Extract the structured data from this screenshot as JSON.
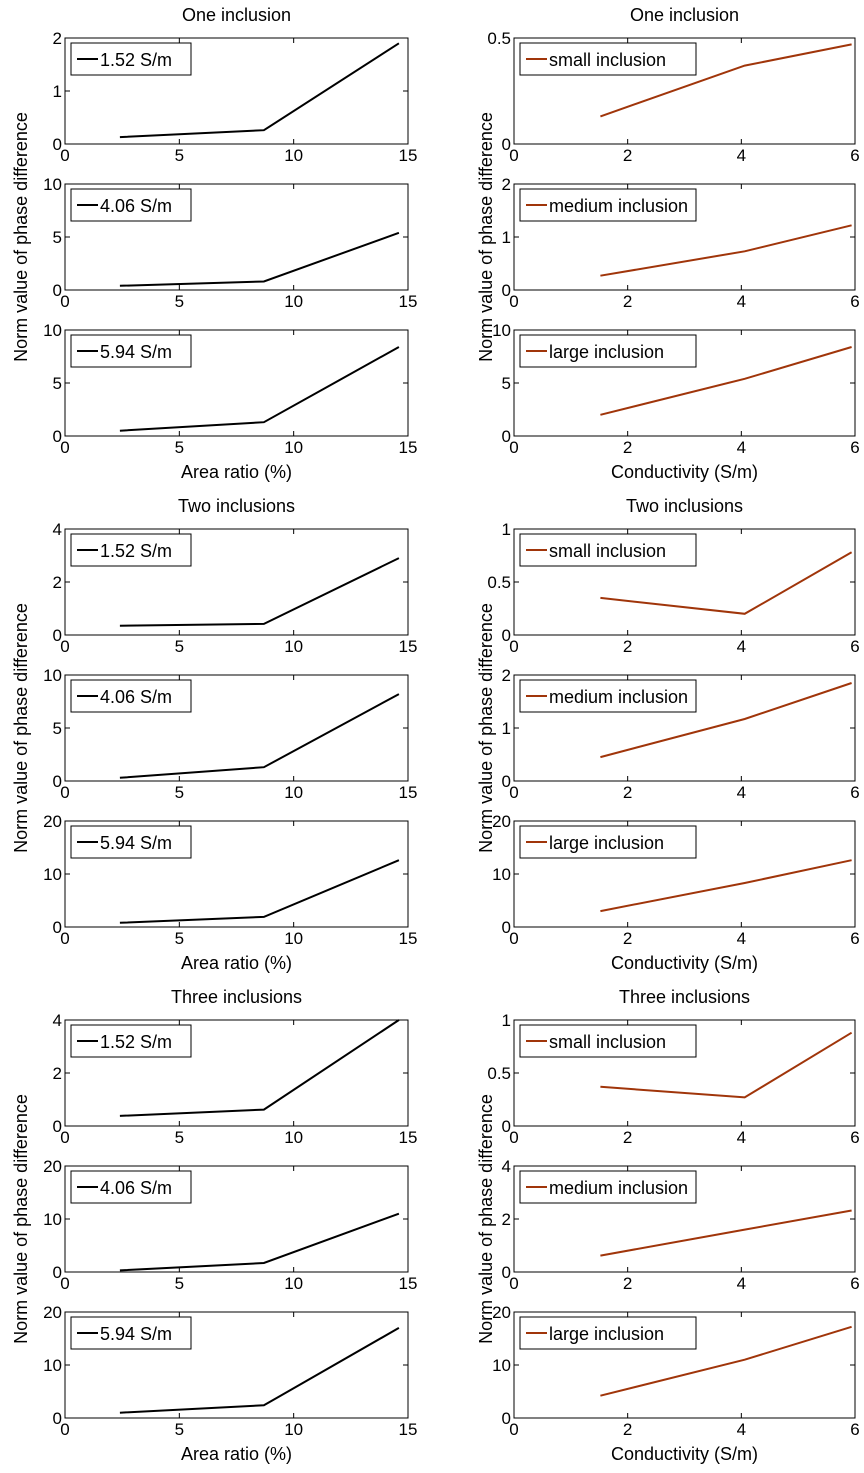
{
  "colors": {
    "left_series": "#000000",
    "right_series": "#a0350a"
  },
  "chart_data": [
    {
      "type": "line",
      "group": 0,
      "column": "left",
      "row": 0,
      "show_xlabel": false,
      "title": "One inclusion",
      "xlabel": "",
      "ylabel": "",
      "xlim": [
        0,
        15
      ],
      "ylim": [
        0,
        2
      ],
      "xticks": [
        0,
        5,
        10,
        15
      ],
      "yticks": [
        0,
        1,
        2
      ],
      "series": [
        {
          "name": "1.52 S/m",
          "x": [
            2.4,
            8.7,
            14.6
          ],
          "y": [
            0.13,
            0.26,
            1.9
          ]
        }
      ]
    },
    {
      "type": "line",
      "group": 0,
      "column": "left",
      "row": 1,
      "show_xlabel": false,
      "title": "",
      "xlabel": "",
      "ylabel": "",
      "xlim": [
        0,
        15
      ],
      "ylim": [
        0,
        10
      ],
      "xticks": [
        0,
        5,
        10,
        15
      ],
      "yticks": [
        0,
        5,
        10
      ],
      "series": [
        {
          "name": "4.06 S/m",
          "x": [
            2.4,
            8.7,
            14.6
          ],
          "y": [
            0.4,
            0.8,
            5.4
          ]
        }
      ]
    },
    {
      "type": "line",
      "group": 0,
      "column": "left",
      "row": 2,
      "show_xlabel": true,
      "title": "",
      "xlabel": "Area ratio (%)",
      "ylabel": "",
      "xlim": [
        0,
        15
      ],
      "ylim": [
        0,
        10
      ],
      "xticks": [
        0,
        5,
        10,
        15
      ],
      "yticks": [
        0,
        5,
        10
      ],
      "series": [
        {
          "name": "5.94 S/m",
          "x": [
            2.4,
            8.7,
            14.6
          ],
          "y": [
            0.5,
            1.3,
            8.4
          ]
        }
      ]
    },
    {
      "type": "line",
      "group": 0,
      "column": "right",
      "row": 0,
      "show_xlabel": false,
      "title": "One inclusion",
      "xlabel": "",
      "ylabel": "",
      "xlim": [
        0,
        6
      ],
      "ylim": [
        0,
        0.5
      ],
      "xticks": [
        0,
        2,
        4,
        6
      ],
      "yticks": [
        0,
        0.5
      ],
      "series": [
        {
          "name": "small inclusion",
          "x": [
            1.52,
            4.06,
            5.94
          ],
          "y": [
            0.13,
            0.37,
            0.47
          ]
        }
      ]
    },
    {
      "type": "line",
      "group": 0,
      "column": "right",
      "row": 1,
      "show_xlabel": false,
      "title": "",
      "xlabel": "",
      "ylabel": "",
      "xlim": [
        0,
        6
      ],
      "ylim": [
        0,
        2
      ],
      "xticks": [
        0,
        2,
        4,
        6
      ],
      "yticks": [
        0,
        1,
        2
      ],
      "series": [
        {
          "name": "medium inclusion",
          "x": [
            1.52,
            4.06,
            5.94
          ],
          "y": [
            0.27,
            0.73,
            1.22
          ]
        }
      ]
    },
    {
      "type": "line",
      "group": 0,
      "column": "right",
      "row": 2,
      "show_xlabel": true,
      "title": "",
      "xlabel": "Conductivity (S/m)",
      "ylabel": "",
      "xlim": [
        0,
        6
      ],
      "ylim": [
        0,
        10
      ],
      "xticks": [
        0,
        2,
        4,
        6
      ],
      "yticks": [
        0,
        5,
        10
      ],
      "series": [
        {
          "name": "large inclusion",
          "x": [
            1.52,
            4.06,
            5.94
          ],
          "y": [
            2.0,
            5.4,
            8.4
          ]
        }
      ]
    },
    {
      "type": "line",
      "group": 1,
      "column": "left",
      "row": 0,
      "show_xlabel": false,
      "title": "Two inclusions",
      "xlabel": "",
      "ylabel": "",
      "xlim": [
        0,
        15
      ],
      "ylim": [
        0,
        4
      ],
      "xticks": [
        0,
        5,
        10,
        15
      ],
      "yticks": [
        0,
        2,
        4
      ],
      "series": [
        {
          "name": "1.52 S/m",
          "x": [
            2.4,
            8.7,
            14.6
          ],
          "y": [
            0.35,
            0.42,
            2.9
          ]
        }
      ]
    },
    {
      "type": "line",
      "group": 1,
      "column": "left",
      "row": 1,
      "show_xlabel": false,
      "title": "",
      "xlabel": "",
      "ylabel": "",
      "xlim": [
        0,
        15
      ],
      "ylim": [
        0,
        10
      ],
      "xticks": [
        0,
        5,
        10,
        15
      ],
      "yticks": [
        0,
        5,
        10
      ],
      "series": [
        {
          "name": "4.06 S/m",
          "x": [
            2.4,
            8.7,
            14.6
          ],
          "y": [
            0.3,
            1.3,
            8.2
          ]
        }
      ]
    },
    {
      "type": "line",
      "group": 1,
      "column": "left",
      "row": 2,
      "show_xlabel": true,
      "title": "",
      "xlabel": "Area ratio (%)",
      "ylabel": "",
      "xlim": [
        0,
        15
      ],
      "ylim": [
        0,
        20
      ],
      "xticks": [
        0,
        5,
        10,
        15
      ],
      "yticks": [
        0,
        10,
        20
      ],
      "series": [
        {
          "name": "5.94 S/m",
          "x": [
            2.4,
            8.7,
            14.6
          ],
          "y": [
            0.8,
            1.9,
            12.6
          ]
        }
      ]
    },
    {
      "type": "line",
      "group": 1,
      "column": "right",
      "row": 0,
      "show_xlabel": false,
      "title": "Two inclusions",
      "xlabel": "",
      "ylabel": "",
      "xlim": [
        0,
        6
      ],
      "ylim": [
        0,
        1
      ],
      "xticks": [
        0,
        2,
        4,
        6
      ],
      "yticks": [
        0,
        0.5,
        1
      ],
      "series": [
        {
          "name": "small inclusion",
          "x": [
            1.52,
            4.06,
            5.94
          ],
          "y": [
            0.35,
            0.2,
            0.78
          ]
        }
      ]
    },
    {
      "type": "line",
      "group": 1,
      "column": "right",
      "row": 1,
      "show_xlabel": false,
      "title": "",
      "xlabel": "",
      "ylabel": "",
      "xlim": [
        0,
        6
      ],
      "ylim": [
        0,
        2
      ],
      "xticks": [
        0,
        2,
        4,
        6
      ],
      "yticks": [
        0,
        1,
        2
      ],
      "series": [
        {
          "name": "medium inclusion",
          "x": [
            1.52,
            4.06,
            5.94
          ],
          "y": [
            0.45,
            1.17,
            1.85
          ]
        }
      ]
    },
    {
      "type": "line",
      "group": 1,
      "column": "right",
      "row": 2,
      "show_xlabel": true,
      "title": "",
      "xlabel": "Conductivity (S/m)",
      "ylabel": "",
      "xlim": [
        0,
        6
      ],
      "ylim": [
        0,
        20
      ],
      "xticks": [
        0,
        2,
        4,
        6
      ],
      "yticks": [
        0,
        10,
        20
      ],
      "series": [
        {
          "name": "large inclusion",
          "x": [
            1.52,
            4.06,
            5.94
          ],
          "y": [
            3.0,
            8.3,
            12.6
          ]
        }
      ]
    },
    {
      "type": "line",
      "group": 2,
      "column": "left",
      "row": 0,
      "show_xlabel": false,
      "title": "Three inclusions",
      "xlabel": "",
      "ylabel": "",
      "xlim": [
        0,
        15
      ],
      "ylim": [
        0,
        4
      ],
      "xticks": [
        0,
        5,
        10,
        15
      ],
      "yticks": [
        0,
        2,
        4
      ],
      "series": [
        {
          "name": "1.52 S/m",
          "x": [
            2.4,
            8.7,
            14.6
          ],
          "y": [
            0.38,
            0.62,
            4.0
          ]
        }
      ]
    },
    {
      "type": "line",
      "group": 2,
      "column": "left",
      "row": 1,
      "show_xlabel": false,
      "title": "",
      "xlabel": "",
      "ylabel": "",
      "xlim": [
        0,
        15
      ],
      "ylim": [
        0,
        20
      ],
      "xticks": [
        0,
        5,
        10,
        15
      ],
      "yticks": [
        0,
        10,
        20
      ],
      "series": [
        {
          "name": "4.06 S/m",
          "x": [
            2.4,
            8.7,
            14.6
          ],
          "y": [
            0.3,
            1.7,
            11.0
          ]
        }
      ]
    },
    {
      "type": "line",
      "group": 2,
      "column": "left",
      "row": 2,
      "show_xlabel": true,
      "title": "",
      "xlabel": "Area ratio (%)",
      "ylabel": "",
      "xlim": [
        0,
        15
      ],
      "ylim": [
        0,
        20
      ],
      "xticks": [
        0,
        5,
        10,
        15
      ],
      "yticks": [
        0,
        10,
        20
      ],
      "series": [
        {
          "name": "5.94 S/m",
          "x": [
            2.4,
            8.7,
            14.6
          ],
          "y": [
            1.0,
            2.4,
            17.0
          ]
        }
      ]
    },
    {
      "type": "line",
      "group": 2,
      "column": "right",
      "row": 0,
      "show_xlabel": false,
      "title": "Three inclusions",
      "xlabel": "",
      "ylabel": "",
      "xlim": [
        0,
        6
      ],
      "ylim": [
        0,
        1
      ],
      "xticks": [
        0,
        2,
        4,
        6
      ],
      "yticks": [
        0,
        0.5,
        1
      ],
      "series": [
        {
          "name": "small inclusion",
          "x": [
            1.52,
            4.06,
            5.94
          ],
          "y": [
            0.37,
            0.27,
            0.88
          ]
        }
      ]
    },
    {
      "type": "line",
      "group": 2,
      "column": "right",
      "row": 1,
      "show_xlabel": false,
      "title": "",
      "xlabel": "",
      "ylabel": "",
      "xlim": [
        0,
        6
      ],
      "ylim": [
        0,
        4
      ],
      "xticks": [
        0,
        2,
        4,
        6
      ],
      "yticks": [
        0,
        2,
        4
      ],
      "series": [
        {
          "name": "medium inclusion",
          "x": [
            1.52,
            4.06,
            5.94
          ],
          "y": [
            0.62,
            1.6,
            2.32
          ]
        }
      ]
    },
    {
      "type": "line",
      "group": 2,
      "column": "right",
      "row": 2,
      "show_xlabel": true,
      "title": "",
      "xlabel": "Conductivity (S/m)",
      "ylabel": "",
      "xlim": [
        0,
        6
      ],
      "ylim": [
        0,
        20
      ],
      "xticks": [
        0,
        2,
        4,
        6
      ],
      "yticks": [
        0,
        10,
        20
      ],
      "series": [
        {
          "name": "large inclusion",
          "x": [
            1.52,
            4.06,
            5.94
          ],
          "y": [
            4.2,
            11.0,
            17.2
          ]
        }
      ]
    }
  ],
  "shared_ylabels": [
    {
      "group": 0,
      "column": "left",
      "text": "Norm value of phase difference"
    },
    {
      "group": 0,
      "column": "right",
      "text": "Norm value of phase difference"
    },
    {
      "group": 1,
      "column": "left",
      "text": "Norm value of phase difference"
    },
    {
      "group": 1,
      "column": "right",
      "text": "Norm value of phase difference"
    },
    {
      "group": 2,
      "column": "left",
      "text": "Norm value of phase difference"
    },
    {
      "group": 2,
      "column": "right",
      "text": "Norm value of phase difference"
    }
  ]
}
